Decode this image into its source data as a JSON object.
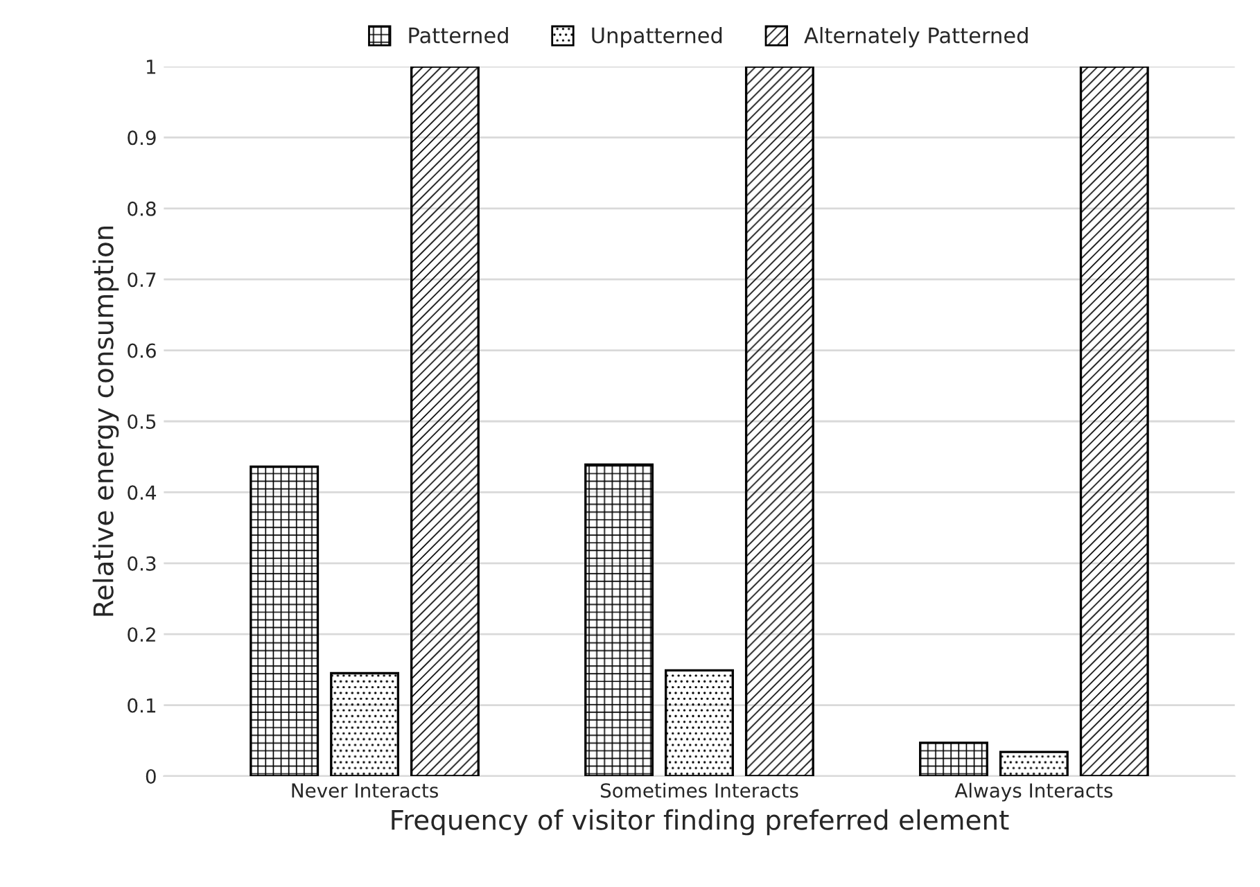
{
  "chart_data": {
    "type": "bar",
    "xlabel": "Frequency of visitor finding preferred element",
    "ylabel": "Relative energy consumption",
    "categories": [
      "Never Interacts",
      "Sometimes Interacts",
      "Always Interacts"
    ],
    "series": [
      {
        "name": "Patterned",
        "color": "#000000",
        "values": [
          0.436,
          0.439,
          0.047
        ]
      },
      {
        "name": "Unpatterned",
        "color": "#000000",
        "values": [
          0.145,
          0.149,
          0.034
        ]
      },
      {
        "name": "Alternately Patterned",
        "color": "#000000",
        "values": [
          1,
          1,
          1
        ]
      }
    ],
    "ylim": [
      0,
      1
    ],
    "yticks": [
      0,
      0.1,
      0.2,
      0.3,
      0.4,
      0.5,
      0.6,
      0.7,
      0.8,
      0.9,
      1
    ],
    "grid": "y",
    "legend": "top"
  }
}
